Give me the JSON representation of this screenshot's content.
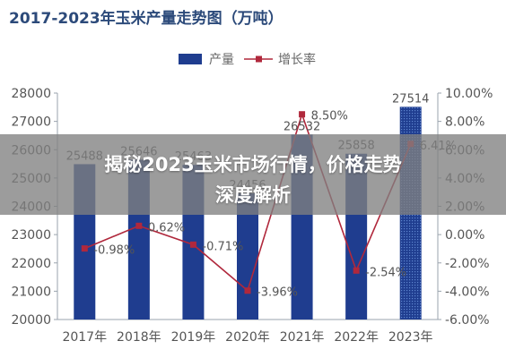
{
  "chart_data": {
    "type": "bar",
    "title": "2017-2023年玉米产量走势图（万吨）",
    "categories": [
      "2017年",
      "2018年",
      "2019年",
      "2020年",
      "2021年",
      "2022年",
      "2023年"
    ],
    "series": [
      {
        "name": "产量",
        "type": "bar",
        "axis": "left",
        "values": [
          25488,
          25646,
          25463,
          24456,
          26532,
          25858,
          27514
        ],
        "labels": [
          "25488",
          "25646",
          "25463",
          "24456",
          "26532",
          "25858",
          "27514"
        ],
        "color": "#1f3d8f"
      },
      {
        "name": "增长率",
        "type": "line",
        "axis": "right",
        "values": [
          -0.98,
          0.62,
          -0.71,
          -3.96,
          8.5,
          -2.54,
          6.41
        ],
        "labels": [
          "-0.98%",
          "0.62%",
          "-0.71%",
          "-3.96%",
          "8.50%",
          "-2.54%",
          "6.41%"
        ],
        "color": "#b0283c"
      }
    ],
    "y_left": {
      "ylim": [
        20000,
        28000
      ],
      "ticks": [
        "20000",
        "21000",
        "22000",
        "23000",
        "24000",
        "25000",
        "26000",
        "27000",
        "28000"
      ]
    },
    "y_right": {
      "ylim": [
        -6,
        10
      ],
      "ticks": [
        "-6.00%",
        "-4.00%",
        "-2.00%",
        "0.00%",
        "2.00%",
        "4.00%",
        "6.00%",
        "8.00%",
        "10.00%"
      ]
    },
    "legend_position": "top",
    "grid": false
  },
  "overlay": {
    "line1": "揭秘2023玉米市场行情，价格走势",
    "line2": "深度解析"
  }
}
